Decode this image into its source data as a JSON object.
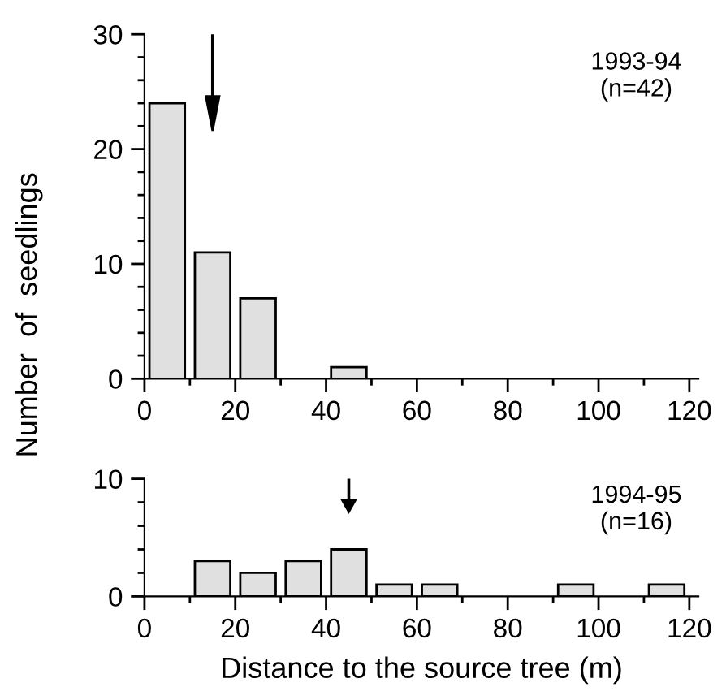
{
  "chart_data": [
    {
      "type": "histogram",
      "ylabel": "Number  of  seedlings",
      "bins": [
        0,
        10,
        20,
        30,
        40,
        50,
        60,
        70,
        80,
        90,
        100,
        110,
        120
      ],
      "values": [
        24,
        11,
        7,
        0,
        1,
        0,
        0,
        0,
        0,
        0,
        0,
        0
      ],
      "color": "#e0e0e0",
      "xlim": [
        0,
        122
      ],
      "xticks": [
        0,
        20,
        40,
        60,
        80,
        100,
        120
      ],
      "ylim": [
        0,
        30
      ],
      "yticks": [
        0,
        10,
        20,
        30
      ],
      "annotations": [
        "1993-94\n(n=42)"
      ],
      "ref_lines": [
        {
          "axis": "x",
          "value": 15
        }
      ]
    },
    {
      "type": "histogram",
      "xlabel": "Distance to the source tree (m)",
      "bins": [
        0,
        10,
        20,
        30,
        40,
        50,
        60,
        70,
        80,
        90,
        100,
        110,
        120
      ],
      "values": [
        0,
        3,
        2,
        3,
        4,
        1,
        1,
        0,
        0,
        1,
        0,
        1
      ],
      "color": "#e0e0e0",
      "xlim": [
        0,
        122
      ],
      "xticks": [
        0,
        20,
        40,
        60,
        80,
        100,
        120
      ],
      "ylim": [
        0,
        10
      ],
      "yticks": [
        0,
        10
      ],
      "annotations": [
        "1994-95\n(n=16)"
      ],
      "ref_lines": [
        {
          "axis": "x",
          "value": 45
        }
      ]
    }
  ]
}
